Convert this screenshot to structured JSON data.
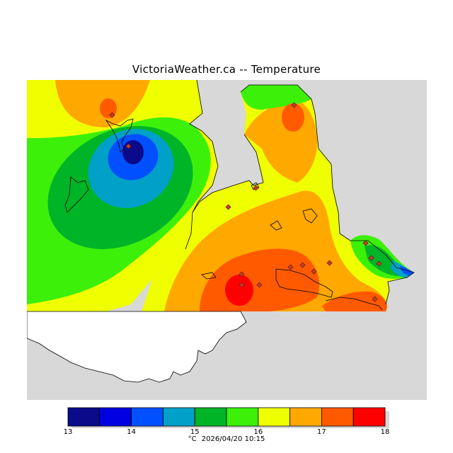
{
  "title": "VictoriaWeather.ca -- Temperature",
  "legend": {
    "unit": "°C",
    "timestamp": "2026/04/20 10:15",
    "ticks": [
      "13",
      "14",
      "15",
      "16",
      "17",
      "18"
    ],
    "colors": [
      "#0a0a8a",
      "#0000e0",
      "#0050ff",
      "#00a0c8",
      "#00b428",
      "#3cf00a",
      "#f0ff00",
      "#ffa800",
      "#ff5a00",
      "#ff0000"
    ]
  },
  "map_colors": {
    "ocean": "#d8d8d8",
    "land_unmapped": "#ffffff",
    "coastline": "#000000",
    "station_marker": "#c83c28"
  }
}
